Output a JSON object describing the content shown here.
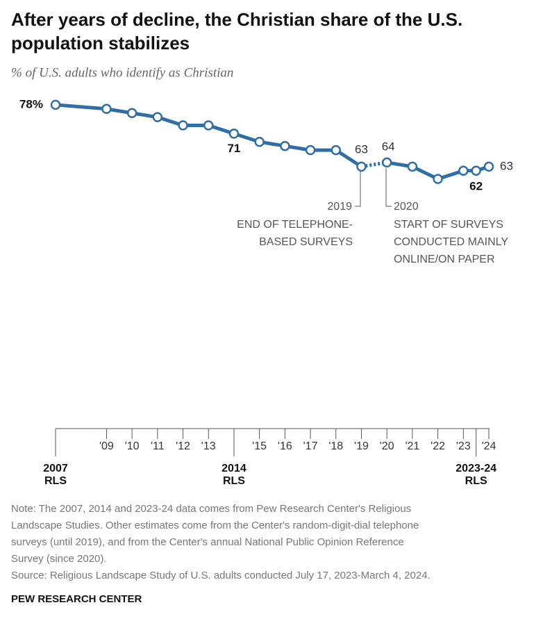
{
  "chart_data": {
    "type": "line",
    "title": [
      "After years of decline, the Christian share of the U.S.",
      "population stabilizes"
    ],
    "subtitle": "% of U.S. adults who identify as Christian",
    "xlim": [
      2007,
      2024
    ],
    "ylim": [
      50,
      80
    ],
    "series": [
      {
        "color": "#2f6ea6",
        "x": [
          2007,
          2009,
          2010,
          2011,
          2012,
          2013,
          2014,
          2015,
          2016,
          2017,
          2018,
          2019
        ],
        "values": [
          78,
          77,
          76,
          75,
          73,
          73,
          71,
          69,
          68,
          67,
          67,
          63
        ],
        "value_labels": [
          "78%",
          null,
          null,
          null,
          null,
          null,
          "71",
          null,
          null,
          null,
          null,
          "63"
        ]
      },
      {
        "color": "#2f6ea6",
        "x": [
          2020,
          2021,
          2022,
          2023,
          2023.5,
          2024
        ],
        "values": [
          64,
          63,
          60,
          62,
          62,
          63
        ],
        "value_labels": [
          "64",
          null,
          null,
          null,
          "62",
          "63"
        ]
      }
    ],
    "xticks": [
      {
        "value": 2009,
        "label": "'09"
      },
      {
        "value": 2010,
        "label": "'10"
      },
      {
        "value": 2011,
        "label": "'11"
      },
      {
        "value": 2012,
        "label": "'12"
      },
      {
        "value": 2013,
        "label": "'13"
      },
      {
        "value": 2015,
        "label": "'15"
      },
      {
        "value": 2016,
        "label": "'16"
      },
      {
        "value": 2017,
        "label": "'17"
      },
      {
        "value": 2018,
        "label": "'18"
      },
      {
        "value": 2019,
        "label": "'19"
      },
      {
        "value": 2020,
        "label": "'20"
      },
      {
        "value": 2021,
        "label": "'21"
      },
      {
        "value": 2022,
        "label": "'22"
      },
      {
        "value": 2023,
        "label": "'23"
      },
      {
        "value": 2024,
        "label": "'24"
      }
    ],
    "rls_ticks": [
      {
        "value": 2007,
        "label": [
          "2007",
          "RLS"
        ]
      },
      {
        "value": 2014,
        "label": [
          "2014",
          "RLS"
        ]
      },
      {
        "value": 2023.5,
        "label": [
          "2023-24",
          "RLS"
        ]
      }
    ],
    "annotations": [
      {
        "label": "2019",
        "text": [
          "END OF TELEPHONE-",
          "BASED SURVEYS"
        ]
      },
      {
        "label": "2020",
        "text": [
          "START OF SURVEYS",
          "CONDUCTED MAINLY",
          "ONLINE/ON PAPER"
        ]
      }
    ],
    "note": [
      "Note: The 2007, 2014 and 2023-24 data comes from Pew Research Center's Religious",
      "Landscape Studies. Other estimates come from the Center's random-digit-dial telephone",
      "surveys (until 2019), and from the Center's annual National Public Opinion Reference",
      "Survey (since 2020)."
    ],
    "source": "Source: Religious Landscape Study of U.S. adults conducted July 17, 2023-March 4, 2024.",
    "footer": "PEW RESEARCH CENTER"
  }
}
